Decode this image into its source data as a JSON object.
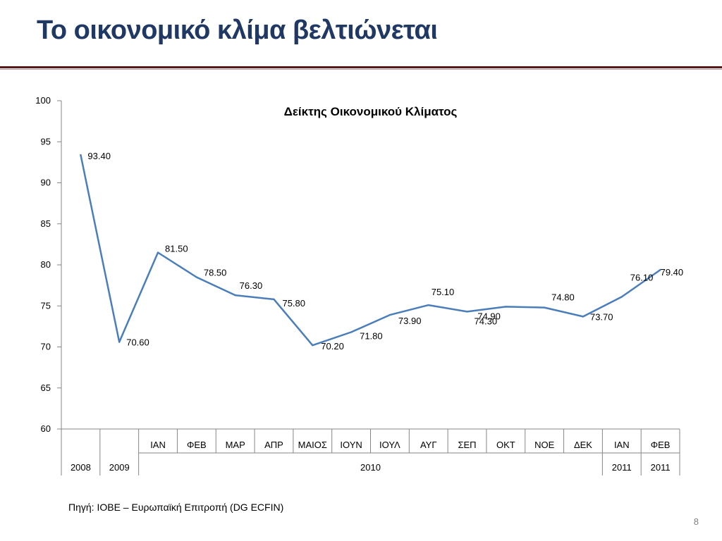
{
  "slide": {
    "title": "Το οικονομικό κλίμα βελτιώνεται",
    "source": "Πηγή: ΙΟΒΕ – Ευρωπαϊκή Επιτροπή (DG ECFIN)",
    "page_number": "8"
  },
  "chart_data": {
    "type": "line",
    "title": "Δείκτης Οικονομικού Κλίματος",
    "xlabel": "",
    "ylabel": "",
    "ylim": [
      60,
      100
    ],
    "yticks": [
      60,
      65,
      70,
      75,
      80,
      85,
      90,
      95,
      100
    ],
    "grid": false,
    "color": "#4A7EBB",
    "categories": [
      "2008",
      "2009",
      "ΙΑΝ",
      "ΦΕΒ",
      "ΜΑΡ",
      "ΑΠΡ",
      "ΜΑΙΟΣ",
      "ΙΟΥΝ",
      "ΙΟΥΛ",
      "ΑΥΓ",
      "ΣΕΠ",
      "ΟΚΤ",
      "ΝΟΕ",
      "ΔΕΚ",
      "ΙΑΝ",
      "ΦΕΒ"
    ],
    "month_labels": [
      "",
      "",
      "ΙΑΝ",
      "ΦΕΒ",
      "ΜΑΡ",
      "ΑΠΡ",
      "ΜΑΙΟΣ",
      "ΙΟΥΝ",
      "ΙΟΥΛ",
      "ΑΥΓ",
      "ΣΕΠ",
      "ΟΚΤ",
      "ΝΟΕ",
      "ΔΕΚ",
      "ΙΑΝ",
      "ΦΕΒ"
    ],
    "year_groups": [
      {
        "label": "2008",
        "start": 0,
        "end": 0
      },
      {
        "label": "2009",
        "start": 1,
        "end": 1
      },
      {
        "label": "2010",
        "start": 2,
        "end": 13
      },
      {
        "label": "2011",
        "start": 14,
        "end": 14
      },
      {
        "label": "2011",
        "start": 15,
        "end": 15
      }
    ],
    "series": [
      {
        "values": [
          93.4,
          70.6,
          81.5,
          78.5,
          76.3,
          75.8,
          70.2,
          71.8,
          73.9,
          75.1,
          74.3,
          74.9,
          74.8,
          73.7,
          76.1,
          79.4
        ],
        "data_labels": [
          "93.40",
          "70.60",
          "81.50",
          "78.50",
          "76.30",
          "75.80",
          "70.20",
          "71.80",
          "73.90",
          "75.10",
          "74.30",
          "74.90",
          "74.80",
          "73.70",
          "76.10",
          "79.40"
        ]
      }
    ]
  }
}
